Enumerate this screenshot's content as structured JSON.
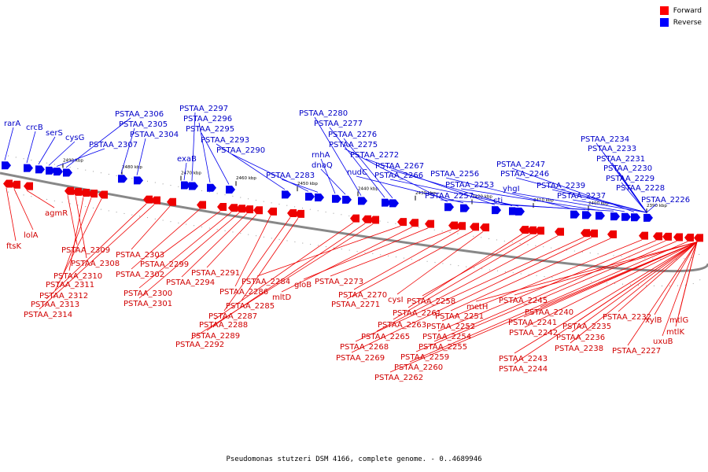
{
  "legend": {
    "forward": {
      "label": "Forward",
      "color": "#ff0000"
    },
    "reverse": {
      "label": "Reverse",
      "color": "#0000ff"
    }
  },
  "caption": "Pseudomonas stutzeri DSM 4166, complete genome. - 0..4689946",
  "ticks": [
    "2490 kbp",
    "2480 kbp",
    "2470 kbp",
    "2460 kbp",
    "2450 kbp",
    "2440 kbp",
    "2430 kbp",
    "2420 kbp",
    "2410 kbp",
    "2400 kbp",
    "2390 kbp"
  ],
  "reverse_genes": [
    "rarA",
    "crcB",
    "serS",
    "cysG",
    "PSTAA_2307",
    "PSTAA_2306",
    "PSTAA_2305",
    "PSTAA_2304",
    "exaB",
    "PSTAA_2297",
    "PSTAA_2296",
    "PSTAA_2295",
    "PSTAA_2293",
    "PSTAA_2290",
    "PSTAA_2283",
    "rnhA",
    "dnaQ",
    "PSTAA_2280",
    "PSTAA_2277",
    "PSTAA_2276",
    "PSTAA_2275",
    "nudC",
    "PSTAA_2272",
    "PSTAA_2267",
    "PSTAA_2266",
    "PSTAA_2257",
    "PSTAA_2256",
    "PSTAA_2253",
    "cti",
    "yhgI",
    "PSTAA_2247",
    "PSTAA_2246",
    "PSTAA_2239",
    "PSTAA_2237",
    "PSTAA_2234",
    "PSTAA_2233",
    "PSTAA_2231",
    "PSTAA_2230",
    "PSTAA_2229",
    "PSTAA_2228",
    "PSTAA_2226"
  ],
  "forward_genes": [
    "ftsK",
    "lolA",
    "agmR",
    "PSTAA_2309",
    "PSTAA_2308",
    "PSTAA_2310",
    "PSTAA_2311",
    "PSTAA_2312",
    "PSTAA_2313",
    "PSTAA_2314",
    "PSTAA_2303",
    "PSTAA_2302",
    "PSTAA_2299",
    "PSTAA_2300",
    "PSTAA_2301",
    "PSTAA_2294",
    "PSTAA_2291",
    "PSTAA_2286",
    "PSTAA_2287",
    "PSTAA_2285",
    "PSTAA_2288",
    "PSTAA_2289",
    "PSTAA_2292",
    "PSTAA_2284",
    "mltD",
    "gloB",
    "PSTAA_2273",
    "PSTAA_2270",
    "PSTAA_2271",
    "cysI",
    "PSTAA_2261",
    "PSTAA_2258",
    "PSTAA_2263",
    "PSTAA_2265",
    "PSTAA_2268",
    "PSTAA_2269",
    "PSTAA_2251",
    "PSTAA_2252",
    "PSTAA_2254",
    "PSTAA_2255",
    "PSTAA_2259",
    "PSTAA_2260",
    "PSTAA_2262",
    "metH",
    "PSTAA_2245",
    "PSTAA_2240",
    "PSTAA_2241",
    "PSTAA_2242",
    "PSTAA_2243",
    "PSTAA_2244",
    "PSTAA_2238",
    "PSTAA_2232",
    "PSTAA_2235",
    "PSTAA_2236",
    "PSTAA_2227",
    "xylB",
    "mtlG",
    "mtlK",
    "uxuB"
  ]
}
